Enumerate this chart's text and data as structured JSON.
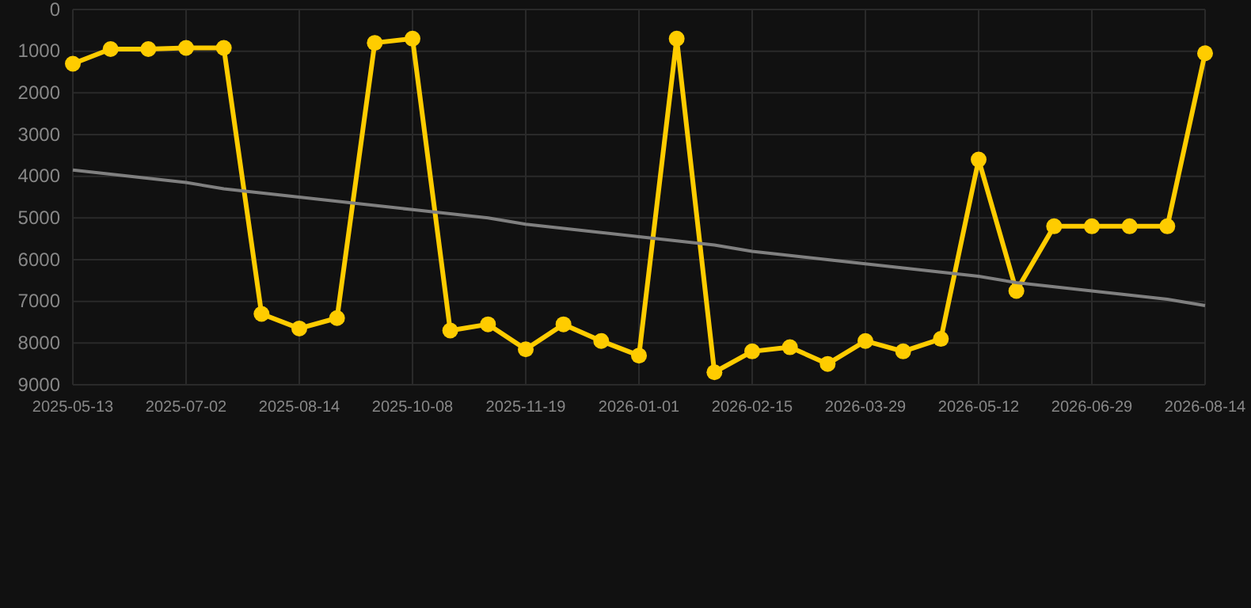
{
  "chart_data": {
    "type": "line",
    "categories": [
      "2025-05-13",
      null,
      null,
      "2025-07-02",
      null,
      null,
      "2025-08-14",
      null,
      null,
      "2025-10-08",
      null,
      null,
      "2025-11-19",
      null,
      null,
      "2026-01-01",
      null,
      null,
      "2026-02-15",
      null,
      null,
      "2026-03-29",
      null,
      null,
      "2026-05-12",
      null,
      null,
      "2026-06-29",
      null,
      null,
      "2026-08-14"
    ],
    "series": [
      {
        "color": "#ffcc00",
        "marker": "circle",
        "values": [
          1300,
          950,
          950,
          920,
          920,
          7300,
          7650,
          7400,
          800,
          700,
          7700,
          7550,
          8150,
          7550,
          7950,
          8300,
          700,
          8700,
          8200,
          8100,
          8500,
          7950,
          8200,
          7900,
          3600,
          6750,
          5200,
          5200,
          5200,
          5200,
          1050
        ]
      },
      {
        "color": "#808080",
        "marker": "none",
        "values": [
          3850,
          3950,
          4050,
          4150,
          4300,
          4400,
          4500,
          4600,
          4700,
          4800,
          4900,
          5000,
          5150,
          5250,
          5350,
          5450,
          5550,
          5650,
          5800,
          5900,
          6000,
          6100,
          6200,
          6300,
          6400,
          6550,
          6650,
          6750,
          6850,
          6950,
          7100
        ]
      }
    ],
    "ylim": [
      9000,
      0
    ],
    "yticks": [
      0,
      1000,
      2000,
      3000,
      4000,
      5000,
      6000,
      7000,
      8000,
      9000
    ],
    "grid": true
  }
}
